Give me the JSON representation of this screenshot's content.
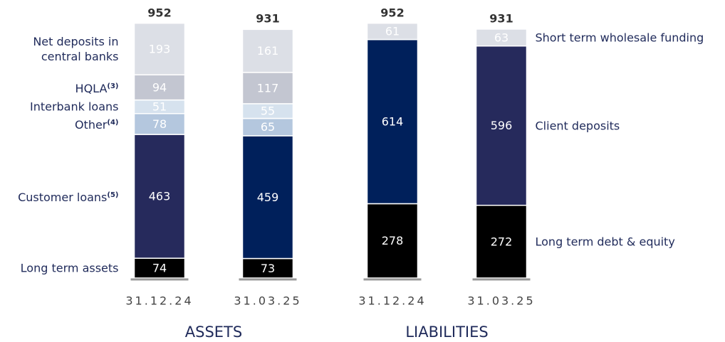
{
  "chart_data": [
    {
      "type": "stacked-bar",
      "title": "ASSETS",
      "legend": "left",
      "categories": [
        "31.12.24",
        "31.03.25"
      ],
      "totals": [
        952,
        931
      ],
      "series": [
        {
          "name": "Long term assets",
          "colors": [
            "#000000",
            "#000000"
          ],
          "values": [
            74,
            73
          ]
        },
        {
          "name": "Customer loans",
          "note": "(5)",
          "colors": [
            "#262a5c",
            "#00205b"
          ],
          "values": [
            463,
            459
          ]
        },
        {
          "name": "Other",
          "note": "(4)",
          "colors": [
            "#b4c7de",
            "#b4c7de"
          ],
          "values": [
            78,
            65
          ]
        },
        {
          "name": "Interbank loans",
          "colors": [
            "#d6e2ee",
            "#d6e2ee"
          ],
          "values": [
            51,
            55
          ]
        },
        {
          "name": "HQLA",
          "note": "(3)",
          "colors": [
            "#c3c6d1",
            "#c3c6d1"
          ],
          "values": [
            94,
            117
          ]
        },
        {
          "name": "Net deposits in central banks",
          "colors": [
            "#dcdfe6",
            "#dcdfe6"
          ],
          "values": [
            193,
            161
          ]
        }
      ]
    },
    {
      "type": "stacked-bar",
      "title": "LIABILITIES",
      "legend": "right",
      "categories": [
        "31.12.24",
        "31.03.25"
      ],
      "totals": [
        952,
        931
      ],
      "series": [
        {
          "name": "Long term debt & equity",
          "colors": [
            "#000000",
            "#000000"
          ],
          "values": [
            278,
            272
          ]
        },
        {
          "name": "Client deposits",
          "colors": [
            "#00205b",
            "#262a5c"
          ],
          "values": [
            614,
            596
          ]
        },
        {
          "name": "Short term wholesale funding",
          "colors": [
            "#dcdfe6",
            "#dcdfe6"
          ],
          "values": [
            61,
            63
          ]
        }
      ]
    }
  ]
}
